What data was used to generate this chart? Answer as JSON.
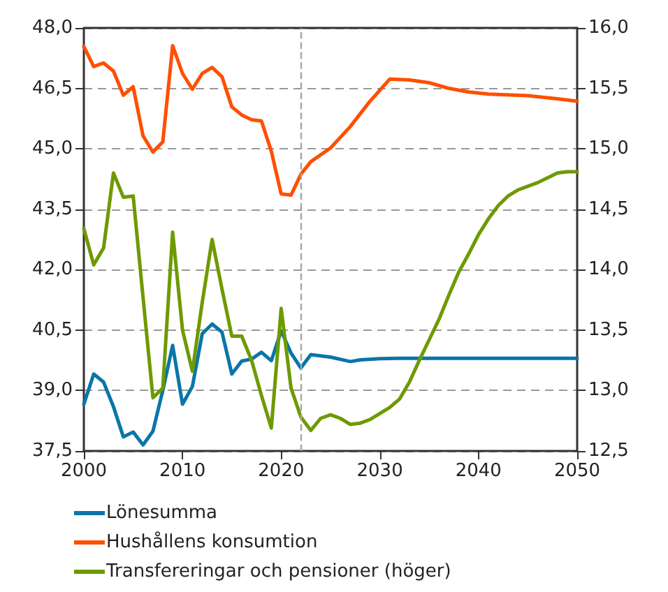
{
  "chart_data": {
    "type": "line",
    "xlim": [
      2000,
      2050
    ],
    "xticks": [
      2000,
      2010,
      2020,
      2030,
      2040,
      2050
    ],
    "ylim": [
      37.5,
      48
    ],
    "yticks": [
      {
        "value": 37.5,
        "label": "37,5"
      },
      {
        "value": 39,
        "label": "39,0"
      },
      {
        "value": 40.5,
        "label": "40,5"
      },
      {
        "value": 42,
        "label": "42,0"
      },
      {
        "value": 43.5,
        "label": "43,5"
      },
      {
        "value": 45,
        "label": "45,0"
      },
      {
        "value": 46.5,
        "label": "46,5"
      },
      {
        "value": 48,
        "label": "48,0"
      }
    ],
    "y2lim": [
      12.5,
      16
    ],
    "y2ticks": [
      {
        "value": 12.5,
        "label": "12,5"
      },
      {
        "value": 13,
        "label": "13,0"
      },
      {
        "value": 13.5,
        "label": "13,5"
      },
      {
        "value": 14,
        "label": "14,0"
      },
      {
        "value": 14.5,
        "label": "14,5"
      },
      {
        "value": 15,
        "label": "15,0"
      },
      {
        "value": 15.5,
        "label": "15,5"
      },
      {
        "value": 16,
        "label": "16,0"
      }
    ],
    "grid": "y",
    "legend": "bottom",
    "marker": "none",
    "line_style": "solid",
    "ref_lines": [
      {
        "axis": "x",
        "value": 2022,
        "label": null,
        "color": "#a6a6a6",
        "line_style": "dashed"
      }
    ],
    "series": [
      {
        "name": "Lönesumma",
        "color": "#0a75a8",
        "x": [
          2000,
          2001,
          2002,
          2003,
          2004,
          2005,
          2006,
          2007,
          2008,
          2009,
          2010,
          2011,
          2012,
          2013,
          2014,
          2015,
          2016,
          2017,
          2018,
          2019,
          2020,
          2021,
          2022,
          2023,
          2024,
          2025,
          2027,
          2028,
          2030,
          2032,
          2050
        ],
        "values": [
          38.66,
          39.41,
          39.21,
          38.6,
          37.85,
          37.97,
          37.65,
          37.99,
          39.0,
          40.12,
          38.66,
          39.1,
          40.41,
          40.65,
          40.45,
          39.41,
          39.73,
          39.78,
          39.95,
          39.74,
          40.48,
          39.93,
          39.56,
          39.89,
          39.86,
          39.83,
          39.72,
          39.76,
          39.79,
          39.8,
          39.8
        ]
      },
      {
        "name": "Hushållens konsumtion",
        "color": "#ff4f00",
        "x": [
          2000,
          2001,
          2002,
          2003,
          2004,
          2005,
          2006,
          2007,
          2008,
          2009,
          2010,
          2011,
          2012,
          2013,
          2014,
          2015,
          2016,
          2017,
          2018,
          2019,
          2020,
          2021,
          2022,
          2023,
          2025,
          2027,
          2029,
          2031,
          2033,
          2035,
          2037,
          2039,
          2041,
          2045,
          2048,
          2050
        ],
        "values": [
          47.54,
          47.04,
          47.13,
          46.93,
          46.33,
          46.54,
          45.32,
          44.92,
          45.17,
          47.56,
          46.87,
          46.48,
          46.87,
          47.02,
          46.79,
          46.04,
          45.84,
          45.72,
          45.69,
          44.94,
          43.88,
          43.85,
          44.37,
          44.68,
          45.02,
          45.55,
          46.18,
          46.73,
          46.71,
          46.64,
          46.5,
          46.41,
          46.36,
          46.32,
          46.24,
          46.18
        ]
      },
      {
        "name": "Transfereringar och pensioner (höger)",
        "color": "#6e9a00",
        "axis": "y2",
        "x": [
          2000,
          2001,
          2002,
          2003,
          2004,
          2005,
          2006,
          2007,
          2008,
          2009,
          2010,
          2011,
          2012,
          2013,
          2014,
          2015,
          2016,
          2017,
          2018,
          2019,
          2020,
          2021,
          2022,
          2023,
          2024,
          2025,
          2026,
          2027,
          2028,
          2029,
          2030,
          2031,
          2032,
          2033,
          2034,
          2035,
          2036,
          2037,
          2038,
          2039,
          2040,
          2041,
          2042,
          2043,
          2044,
          2045,
          2046,
          2047,
          2048,
          2049,
          2050
        ],
        "values": [
          14.34,
          14.04,
          14.18,
          14.8,
          14.6,
          14.61,
          13.77,
          12.94,
          13.02,
          14.31,
          13.5,
          13.16,
          13.73,
          14.25,
          13.84,
          13.45,
          13.45,
          13.25,
          12.96,
          12.69,
          13.68,
          13.02,
          12.78,
          12.67,
          12.77,
          12.8,
          12.77,
          12.72,
          12.73,
          12.76,
          12.81,
          12.86,
          12.93,
          13.07,
          13.25,
          13.42,
          13.59,
          13.79,
          13.98,
          14.13,
          14.29,
          14.42,
          14.53,
          14.61,
          14.66,
          14.69,
          14.72,
          14.76,
          14.8,
          14.81,
          14.81
        ]
      }
    ]
  }
}
